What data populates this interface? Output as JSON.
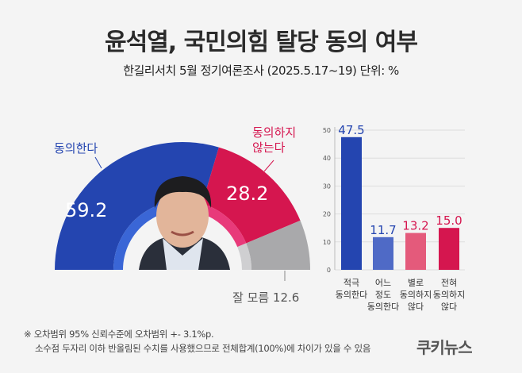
{
  "header": {
    "title": "윤석열, 국민의힘 탈당 동의 여부",
    "subtitle": "한길리서치 5월 정기여론조사 (2025.5.17~19) 단위: %"
  },
  "chart_data": [
    {
      "type": "pie",
      "variant": "half-donut",
      "slices": [
        {
          "label": "동의한다",
          "value": 59.2,
          "color": "#2445b0"
        },
        {
          "label": "동의하지 않는다",
          "value": 28.2,
          "color": "#d5164f"
        },
        {
          "label": "잘 모름",
          "value": 12.6,
          "color": "#a9a9ab"
        }
      ],
      "labels": {
        "agree": "동의한다",
        "disagree_1": "동의하지",
        "disagree_2": "않는다",
        "unknown": "잘 모름 12.6",
        "agree_value": "59.2",
        "disagree_value": "28.2"
      }
    },
    {
      "type": "bar",
      "categories": [
        [
          "적극",
          "동의한다"
        ],
        [
          "어느",
          "정도",
          "동의한다"
        ],
        [
          "별로",
          "동의하지",
          "않다"
        ],
        [
          "전혀",
          "동의하지",
          "않다"
        ]
      ],
      "values": [
        47.5,
        11.7,
        13.2,
        15.0
      ],
      "value_labels": [
        "47.5",
        "11.7",
        "13.2",
        "15.0"
      ],
      "colors": [
        "#2445b0",
        "#4f6ac6",
        "#e45a7b",
        "#d5164f"
      ],
      "label_colors": [
        "#2445b0",
        "#2445b0",
        "#d5164f",
        "#d5164f"
      ],
      "ylim": [
        0,
        50
      ],
      "yticks": [
        "0",
        "10",
        "20",
        "30",
        "40",
        "50"
      ],
      "grid": true
    }
  ],
  "footer": {
    "note1": "※ 오차범위 95% 신뢰수준에 오차범위 +- 3.1%p.",
    "note2": "소수점 두자리 이하 반올림된 수치를 사용했으므로 전체합계(100%)에 차이가 있을 수 있음",
    "logo": "쿠키뉴스"
  }
}
